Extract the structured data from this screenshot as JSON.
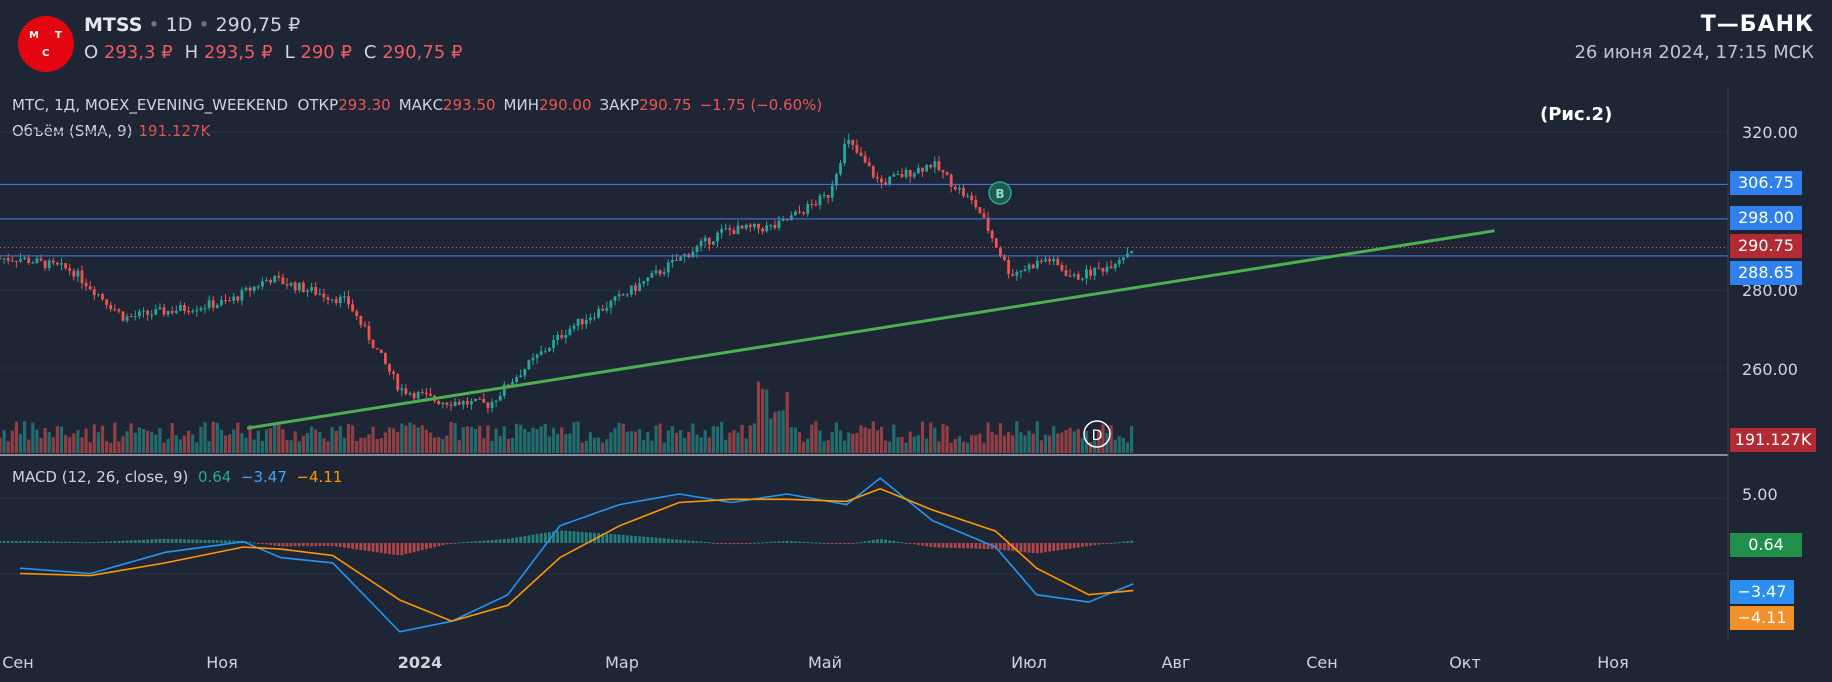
{
  "header": {
    "symbol": "MTSS",
    "interval": "1D",
    "last_price": "290,75 ₽",
    "logo_letters": [
      "М",
      "Т",
      "С"
    ],
    "ohlc": {
      "o_label": "O",
      "o_value": "293,3 ₽",
      "h_label": "H",
      "h_value": "293,5 ₽",
      "l_label": "L",
      "l_value": "290 ₽",
      "c_label": "C",
      "c_value": "290,75 ₽"
    },
    "brand": "Т—БАНК",
    "datetime": "26 июня 2024, 17:15 МСК"
  },
  "legend": {
    "main_prefix": "МТС, 1Д, MOEX_EVENING_WEEKEND",
    "open_label": "ОТКР",
    "open_value": "293.30",
    "high_label": "МАКС",
    "high_value": "293.50",
    "low_label": "МИН",
    "low_value": "290.00",
    "close_label": "ЗАКР",
    "close_value": "290.75",
    "change": "−1.75 (−0.60%)",
    "volume_label": "Объём (SMA, 9)",
    "volume_value": "191.127K",
    "macd_label": "MACD (12, 26, close, 9)",
    "macd_hist": "0.64",
    "macd_line": "−3.47",
    "macd_signal": "−4.11"
  },
  "figure_label": "(Рис.2)",
  "markers": {
    "b": "B",
    "d": "D"
  },
  "colors": {
    "background": "#1e2636",
    "up": "#26a69a",
    "down": "#ef5350",
    "trendline": "#4caf50",
    "level": "#4d7be8",
    "macd": "#2196f3",
    "signal": "#ff9800"
  },
  "chart_data": [
    {
      "type": "candlestick",
      "title": "МТС, 1Д, MOEX_EVENING_WEEKEND",
      "x_axis_ticks": [
        "Сен",
        "Ноя",
        "2024",
        "Мар",
        "Май",
        "Июл",
        "Авг",
        "Сен",
        "Окт",
        "Ноя"
      ],
      "y_ticks": [
        "320.00",
        "280.00",
        "260.00"
      ],
      "ylim": [
        245,
        325
      ],
      "close_path": {
        "x": [
          "2023-09-01",
          "2023-09-15",
          "2023-09-29",
          "2023-10-13",
          "2023-10-27",
          "2023-11-07",
          "2023-11-14",
          "2023-11-28",
          "2023-12-12",
          "2023-12-22",
          "2024-01-05",
          "2024-01-12",
          "2024-01-26",
          "2024-02-09",
          "2024-02-22",
          "2024-03-08",
          "2024-03-22",
          "2024-04-05",
          "2024-04-10",
          "2024-04-19",
          "2024-05-03",
          "2024-05-15",
          "2024-05-24",
          "2024-06-03",
          "2024-06-10",
          "2024-06-19",
          "2024-06-26"
        ],
        "y": [
          288,
          285,
          273,
          275,
          277,
          283,
          281,
          277,
          255,
          252,
          251,
          258,
          270,
          278,
          286,
          295,
          296,
          304,
          318,
          307,
          312,
          301,
          284,
          288,
          283,
          286,
          290.75
        ]
      },
      "price_levels": [
        "306.75",
        "298.00",
        "288.65"
      ],
      "current_price": "290.75",
      "volume_sma": "191.127K",
      "trendline": {
        "from": [
          "2023-11-01",
          245
        ],
        "to": [
          "2024-10-01",
          295
        ]
      }
    },
    {
      "type": "line",
      "title": "MACD (12, 26, close, 9)",
      "y_ticks": [
        "5.00"
      ],
      "ylim": [
        -10,
        8
      ],
      "macd": {
        "x": [
          "2023-09-01",
          "2023-09-20",
          "2023-10-10",
          "2023-10-31",
          "2023-11-10",
          "2023-11-24",
          "2023-12-12",
          "2023-12-26",
          "2024-01-10",
          "2024-01-24",
          "2024-02-09",
          "2024-02-25",
          "2024-03-10",
          "2024-03-25",
          "2024-04-10",
          "2024-04-19",
          "2024-05-03",
          "2024-05-20",
          "2024-05-31",
          "2024-06-14",
          "2024-06-26"
        ],
        "y": [
          -2,
          -2.5,
          -0.5,
          0.5,
          -1,
          -1.5,
          -8,
          -7,
          -4.5,
          2,
          4,
          5,
          4.2,
          5,
          4,
          6.5,
          2.5,
          0,
          -4.5,
          -5.2,
          -3.47
        ]
      },
      "signal": {
        "x": [
          "2023-09-01",
          "2023-09-20",
          "2023-10-10",
          "2023-10-31",
          "2023-11-10",
          "2023-11-24",
          "2023-12-12",
          "2023-12-26",
          "2024-01-10",
          "2024-01-24",
          "2024-02-09",
          "2024-02-25",
          "2024-03-10",
          "2024-03-25",
          "2024-04-10",
          "2024-04-19",
          "2024-05-03",
          "2024-05-20",
          "2024-05-31",
          "2024-06-14",
          "2024-06-26"
        ],
        "y": [
          -2.5,
          -2.7,
          -1.5,
          0,
          -0.2,
          -0.8,
          -5,
          -7,
          -5.5,
          -1,
          2,
          4.2,
          4.5,
          4.5,
          4.3,
          5.5,
          3.5,
          1.5,
          -2,
          -4.5,
          -4.11
        ]
      },
      "histogram_last": "0.64"
    }
  ]
}
